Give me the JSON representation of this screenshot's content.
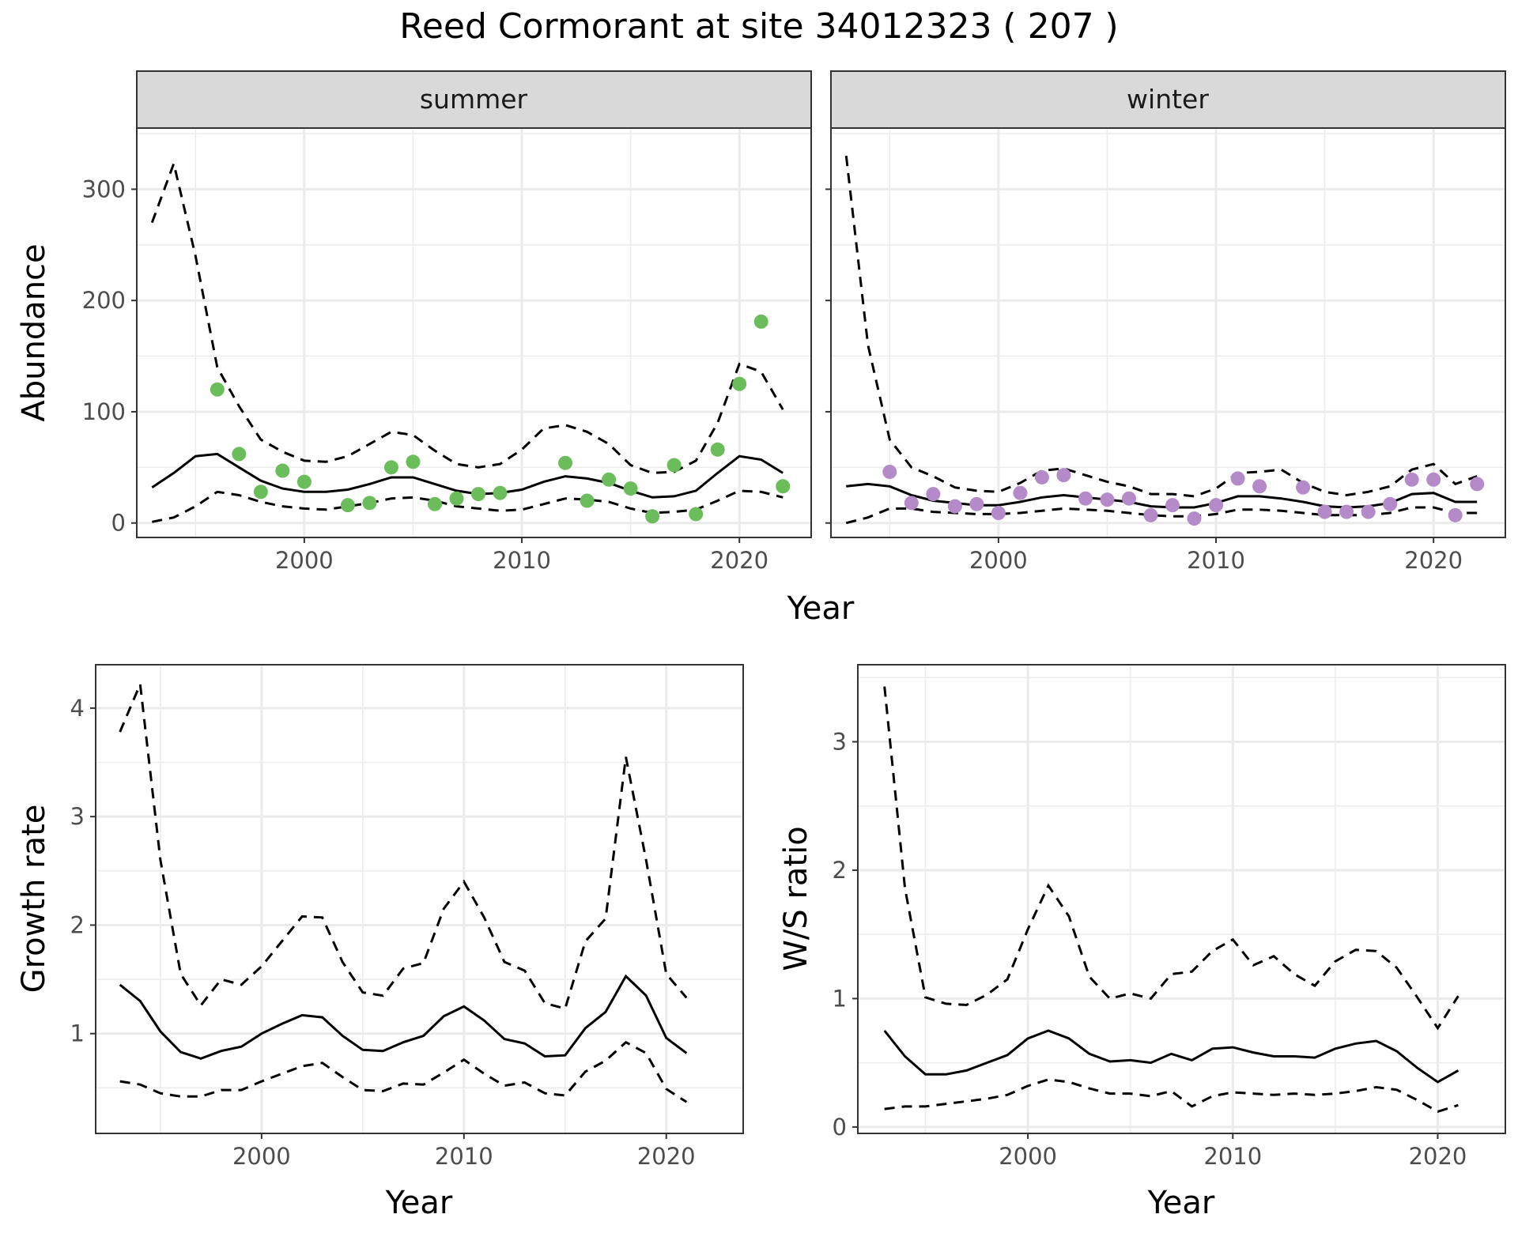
{
  "title": "Reed Cormorant at site 34012323 ( 207 )",
  "colors": {
    "summer_points": "#6abd5a",
    "winter_points": "#b48ac8",
    "lines": "#000000",
    "strip": "#d9d9d9"
  },
  "chart_data": [
    {
      "type": "line",
      "facet": "summer",
      "xlabel": "Year",
      "ylabel": "Abundance",
      "xlim": [
        1992.3,
        2023.3
      ],
      "ylim": [
        -13,
        355
      ],
      "x_ticks": [
        2000,
        2010,
        2020
      ],
      "y_ticks": [
        0,
        100,
        200,
        300
      ],
      "grid": true,
      "lines": {
        "years": [
          1993,
          1994,
          1995,
          1996,
          1997,
          1998,
          1999,
          2000,
          2001,
          2002,
          2003,
          2004,
          2005,
          2006,
          2007,
          2008,
          2009,
          2010,
          2011,
          2012,
          2013,
          2014,
          2015,
          2016,
          2017,
          2018,
          2019,
          2020,
          2021,
          2022
        ],
        "estimate": [
          32,
          45,
          60,
          62,
          50,
          38,
          31,
          28,
          28,
          30,
          35,
          41,
          41,
          35,
          29,
          26,
          27,
          30,
          37,
          42,
          40,
          36,
          29,
          23,
          24,
          29,
          45,
          60,
          57,
          45
        ],
        "lower": [
          1,
          5,
          15,
          28,
          25,
          19,
          15,
          13,
          12,
          15,
          18,
          22,
          23,
          20,
          15,
          13,
          11,
          12,
          17,
          22,
          21,
          19,
          13,
          9,
          10,
          12,
          20,
          29,
          28,
          23
        ],
        "upper": [
          270,
          323,
          240,
          140,
          105,
          75,
          64,
          56,
          55,
          60,
          71,
          82,
          79,
          65,
          53,
          50,
          53,
          66,
          85,
          88,
          82,
          71,
          52,
          45,
          46,
          56,
          90,
          143,
          136,
          102
        ]
      },
      "points": {
        "x": [
          1996,
          1997,
          1998,
          1999,
          2000,
          2002,
          2003,
          2004,
          2005,
          2006,
          2007,
          2008,
          2009,
          2012,
          2013,
          2014,
          2015,
          2016,
          2017,
          2018,
          2019,
          2020,
          2021,
          2022
        ],
        "y": [
          120,
          62,
          28,
          47,
          37,
          16,
          18,
          50,
          55,
          17,
          22,
          26,
          27,
          54,
          20,
          39,
          31,
          6,
          52,
          8,
          66,
          125,
          181,
          33
        ]
      }
    },
    {
      "type": "line",
      "facet": "winter",
      "xlabel": "Year",
      "ylabel": "Abundance",
      "xlim": [
        1992.3,
        2023.3
      ],
      "ylim": [
        -13,
        355
      ],
      "x_ticks": [
        2000,
        2010,
        2020
      ],
      "y_ticks": [
        0,
        100,
        200,
        300
      ],
      "grid": true,
      "lines": {
        "years": [
          1993,
          1994,
          1995,
          1996,
          1997,
          1998,
          1999,
          2000,
          2001,
          2002,
          2003,
          2004,
          2005,
          2006,
          2007,
          2008,
          2009,
          2010,
          2011,
          2012,
          2013,
          2014,
          2015,
          2016,
          2017,
          2018,
          2019,
          2020,
          2021,
          2022
        ],
        "estimate": [
          33,
          35,
          33,
          25,
          20,
          18,
          16,
          16,
          19,
          23,
          25,
          23,
          21,
          19,
          15,
          14,
          14,
          18,
          24,
          24,
          22,
          19,
          15,
          14,
          15,
          18,
          26,
          27,
          19,
          19
        ],
        "lower": [
          0,
          5,
          13,
          13,
          10,
          9,
          8,
          8,
          9,
          11,
          13,
          12,
          11,
          9,
          7,
          6,
          6,
          8,
          12,
          12,
          11,
          9,
          7,
          7,
          7,
          9,
          14,
          14,
          9,
          9
        ],
        "upper": [
          330,
          160,
          75,
          50,
          42,
          32,
          29,
          28,
          36,
          47,
          49,
          43,
          37,
          33,
          26,
          26,
          24,
          31,
          45,
          46,
          48,
          36,
          28,
          25,
          28,
          33,
          48,
          53,
          35,
          42
        ]
      },
      "points": {
        "x": [
          1995,
          1996,
          1997,
          1998,
          1999,
          2000,
          2001,
          2002,
          2003,
          2004,
          2005,
          2006,
          2007,
          2008,
          2009,
          2010,
          2011,
          2012,
          2014,
          2015,
          2016,
          2017,
          2018,
          2019,
          2020,
          2021,
          2022
        ],
        "y": [
          46,
          18,
          26,
          15,
          17,
          9,
          27,
          41,
          43,
          22,
          21,
          22,
          7,
          16,
          4,
          16,
          40,
          33,
          32,
          10,
          10,
          10,
          17,
          39,
          39,
          7,
          35
        ]
      }
    },
    {
      "type": "line",
      "facet": "growth",
      "xlabel": "Year",
      "ylabel": "Growth rate",
      "xlim": [
        1991.8,
        2023.8
      ],
      "ylim": [
        0.08,
        4.4
      ],
      "x_ticks": [
        2000,
        2010,
        2020
      ],
      "y_ticks": [
        1,
        2,
        3,
        4
      ],
      "grid": true,
      "lines": {
        "years": [
          1993,
          1994,
          1995,
          1996,
          1997,
          1998,
          1999,
          2000,
          2001,
          2002,
          2003,
          2004,
          2005,
          2006,
          2007,
          2008,
          2009,
          2010,
          2011,
          2012,
          2013,
          2014,
          2015,
          2016,
          2017,
          2018,
          2019,
          2020,
          2021
        ],
        "estimate": [
          1.45,
          1.3,
          1.02,
          0.83,
          0.77,
          0.84,
          0.88,
          1.0,
          1.09,
          1.17,
          1.15,
          0.98,
          0.85,
          0.84,
          0.92,
          0.98,
          1.16,
          1.25,
          1.12,
          0.95,
          0.91,
          0.79,
          0.8,
          1.05,
          1.2,
          1.53,
          1.35,
          0.96,
          0.82
        ],
        "lower": [
          0.56,
          0.53,
          0.45,
          0.42,
          0.42,
          0.48,
          0.48,
          0.56,
          0.63,
          0.7,
          0.73,
          0.6,
          0.48,
          0.47,
          0.54,
          0.53,
          0.64,
          0.76,
          0.63,
          0.52,
          0.55,
          0.45,
          0.43,
          0.65,
          0.75,
          0.92,
          0.82,
          0.49,
          0.37
        ],
        "upper": [
          3.78,
          4.22,
          2.6,
          1.55,
          1.26,
          1.5,
          1.45,
          1.62,
          1.85,
          2.08,
          2.07,
          1.66,
          1.38,
          1.35,
          1.6,
          1.65,
          2.15,
          2.4,
          2.07,
          1.66,
          1.58,
          1.28,
          1.23,
          1.85,
          2.06,
          3.55,
          2.6,
          1.55,
          1.33
        ]
      }
    },
    {
      "type": "line",
      "facet": "ratio",
      "xlabel": "Year",
      "ylabel": "W/S ratio",
      "xlim": [
        1991.7,
        2023.3
      ],
      "ylim": [
        -0.05,
        3.6
      ],
      "x_ticks": [
        2000,
        2010,
        2020
      ],
      "y_ticks": [
        0,
        1,
        2,
        3
      ],
      "grid": true,
      "lines": {
        "years": [
          1993,
          1994,
          1995,
          1996,
          1997,
          1998,
          1999,
          2000,
          2001,
          2002,
          2003,
          2004,
          2005,
          2006,
          2007,
          2008,
          2009,
          2010,
          2011,
          2012,
          2013,
          2014,
          2015,
          2016,
          2017,
          2018,
          2019,
          2020,
          2021
        ],
        "estimate": [
          0.75,
          0.55,
          0.41,
          0.41,
          0.44,
          0.5,
          0.56,
          0.69,
          0.75,
          0.69,
          0.57,
          0.51,
          0.52,
          0.5,
          0.57,
          0.52,
          0.61,
          0.62,
          0.58,
          0.55,
          0.55,
          0.54,
          0.61,
          0.65,
          0.67,
          0.59,
          0.46,
          0.35,
          0.44
        ],
        "lower": [
          0.14,
          0.16,
          0.16,
          0.18,
          0.2,
          0.22,
          0.25,
          0.32,
          0.37,
          0.35,
          0.3,
          0.26,
          0.26,
          0.24,
          0.28,
          0.16,
          0.24,
          0.27,
          0.26,
          0.25,
          0.26,
          0.25,
          0.26,
          0.28,
          0.31,
          0.29,
          0.21,
          0.12,
          0.17
        ],
        "upper": [
          3.43,
          1.86,
          1.01,
          0.96,
          0.95,
          1.03,
          1.15,
          1.54,
          1.88,
          1.64,
          1.17,
          1.0,
          1.04,
          1.0,
          1.19,
          1.21,
          1.37,
          1.46,
          1.26,
          1.33,
          1.19,
          1.1,
          1.29,
          1.38,
          1.37,
          1.24,
          1.01,
          0.77,
          1.02
        ]
      }
    }
  ]
}
